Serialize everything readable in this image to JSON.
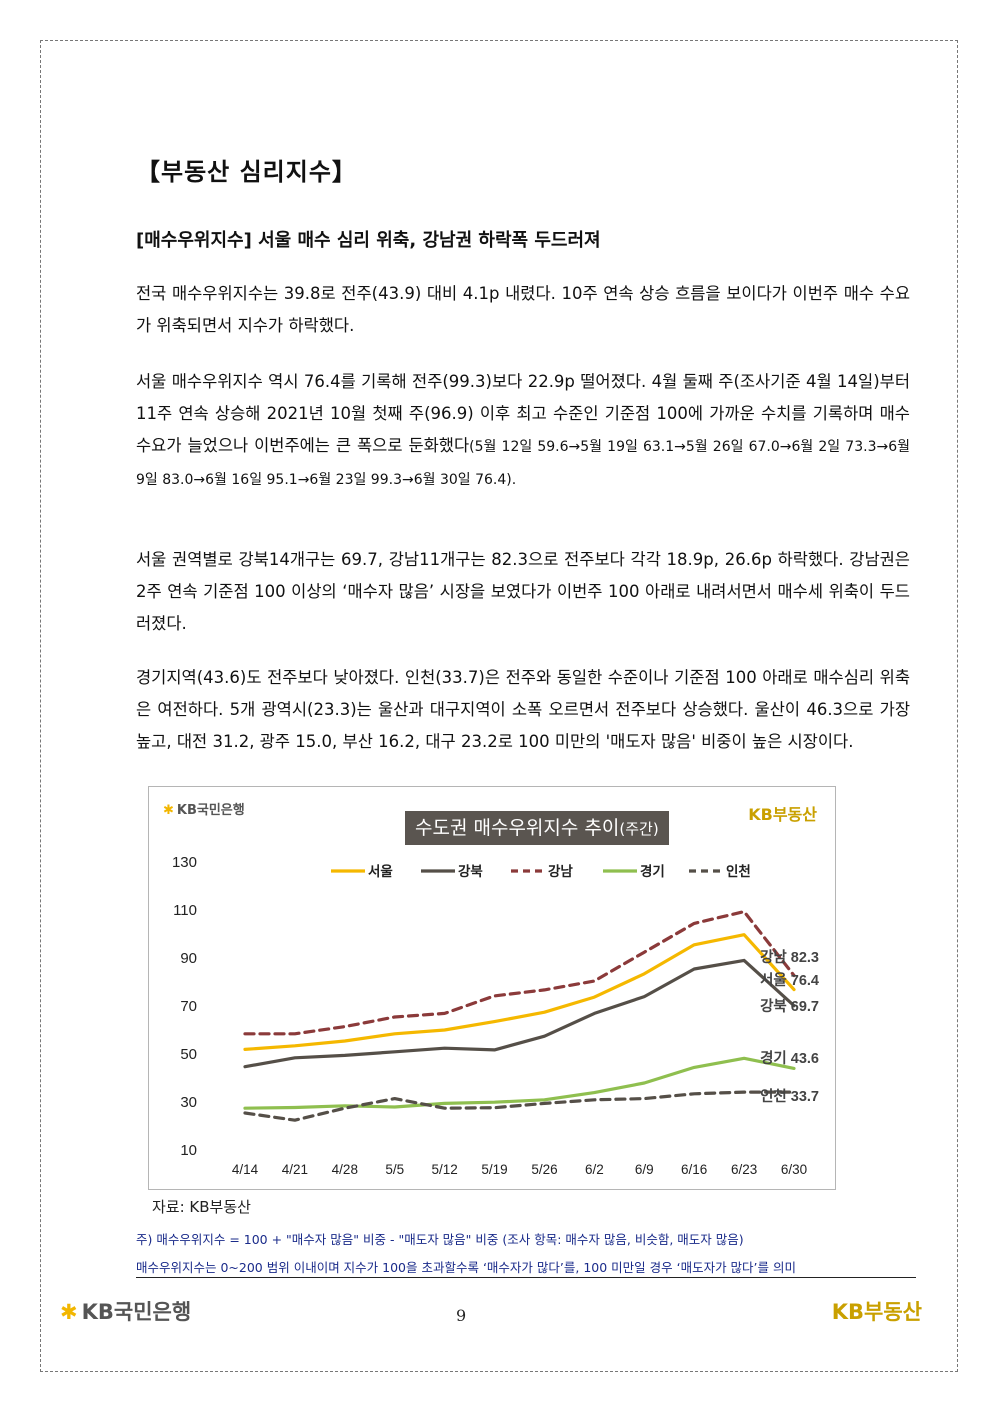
{
  "section_title": "【부동산 심리지수】",
  "subheading": "[매수우위지수] 서울 매수 심리 위축, 강남권 하락폭 두드러져",
  "paragraphs": {
    "p1": "전국 매수우위지수는 39.8로 전주(43.9) 대비 4.1p 내렸다. 10주 연속 상승 흐름을 보이다가 이번주 매수 수요가 위축되면서 지수가 하락했다.",
    "p2_main": "서울 매수우위지수 역시 76.4를 기록해 전주(99.3)보다 22.9p 떨어졌다. 4월 둘째 주(조사기준 4월 14일)부터 11주 연속 상승해 2021년 10월 첫째 주(96.9) 이후 최고 수준인 기준점 100에 가까운 수치를 기록하며 매수 수요가 늘었으나 이번주에는 큰 폭으로 둔화했다",
    "p2_small": "(5월 12일 59.6→5월 19일 63.1→5월 26일 67.0→6월 2일 73.3→6월 9일 83.0→6월 16일 95.1→6월 23일 99.3→6월 30일 76.4).",
    "p3": "서울 권역별로 강북14개구는 69.7, 강남11개구는 82.3으로 전주보다 각각 18.9p, 26.6p 하락했다. 강남권은 2주 연속 기준점 100 이상의 ‘매수자 많음’ 시장을 보였다가 이번주 100 아래로 내려서면서 매수세 위축이 두드러졌다.",
    "p4": "경기지역(43.6)도 전주보다 낮아졌다. 인천(33.7)은 전주와 동일한 수준이나 기준점 100 아래로 매수심리 위축은 여전하다. 5개 광역시(23.3)는 울산과 대구지역이 소폭 오르면서 전주보다 상승했다. 울산이 46.3으로 가장 높고, 대전 31.2, 광주 15.0, 부산 16.2, 대구 23.2로 100 미만의 '매도자 많음' 비중이 높은 시장이다."
  },
  "chart_brand_left": "KB국민은행",
  "chart_brand_right": "KB부동산",
  "chart_data": {
    "type": "line",
    "title": "수도권 매수우위지수 추이",
    "title_suffix": "(주간)",
    "categories": [
      "4/14",
      "4/21",
      "4/28",
      "5/5",
      "5/12",
      "5/19",
      "5/26",
      "6/2",
      "6/9",
      "6/16",
      "6/23",
      "6/30"
    ],
    "ylim": [
      10,
      130
    ],
    "yticks": [
      "10",
      "30",
      "50",
      "70",
      "90",
      "110",
      "130"
    ],
    "grid": false,
    "legend_position": "top",
    "series": [
      {
        "name": "서울",
        "color": "#f5b800",
        "dash": false,
        "values": [
          51.5,
          53,
          55,
          58,
          59.6,
          63.1,
          67.0,
          73.3,
          83.0,
          95.1,
          99.3,
          76.4
        ],
        "end_label": "서울 76.4"
      },
      {
        "name": "강북",
        "color": "#554f48",
        "dash": false,
        "values": [
          44.3,
          48,
          49,
          50.5,
          52,
          51.3,
          57,
          66.5,
          73.5,
          85,
          88.6,
          69.7
        ],
        "end_label": "강북 69.7"
      },
      {
        "name": "강남",
        "color": "#8b3a3a",
        "dash": true,
        "values": [
          58,
          58,
          61,
          65,
          66.5,
          73.8,
          76.3,
          80,
          92,
          104,
          108.9,
          82.3
        ],
        "end_label": "강남 82.3"
      },
      {
        "name": "경기",
        "color": "#8fbf4f",
        "dash": false,
        "values": [
          27,
          27.3,
          28,
          27.5,
          29,
          29.5,
          30.5,
          33.5,
          37.5,
          44,
          47.8,
          43.6
        ],
        "end_label": "경기 43.6"
      },
      {
        "name": "인천",
        "color": "#554f48",
        "dash": true,
        "values": [
          25,
          22,
          27,
          31,
          27,
          27.2,
          29,
          30.5,
          31,
          33,
          33.7,
          33.7
        ],
        "end_label": "인천 33.7"
      }
    ]
  },
  "source": "자료: KB부동산",
  "note1": "주) 매수우위지수 = 100 + \"매수자 많음\" 비중 - \"매도자 많음\" 비중   (조사 항목: 매수자 많음, 비슷함, 매도자 많음)",
  "note2": "매수우위지수는 0~200 범위 이내이며 지수가 100을 초과할수록 ‘매수자가 많다’를, 100 미만일 경우 ‘매도자가 많다’를 의미",
  "footer": {
    "bank": "KB국민은행",
    "page_number": "9",
    "estate": "KB부동산"
  }
}
